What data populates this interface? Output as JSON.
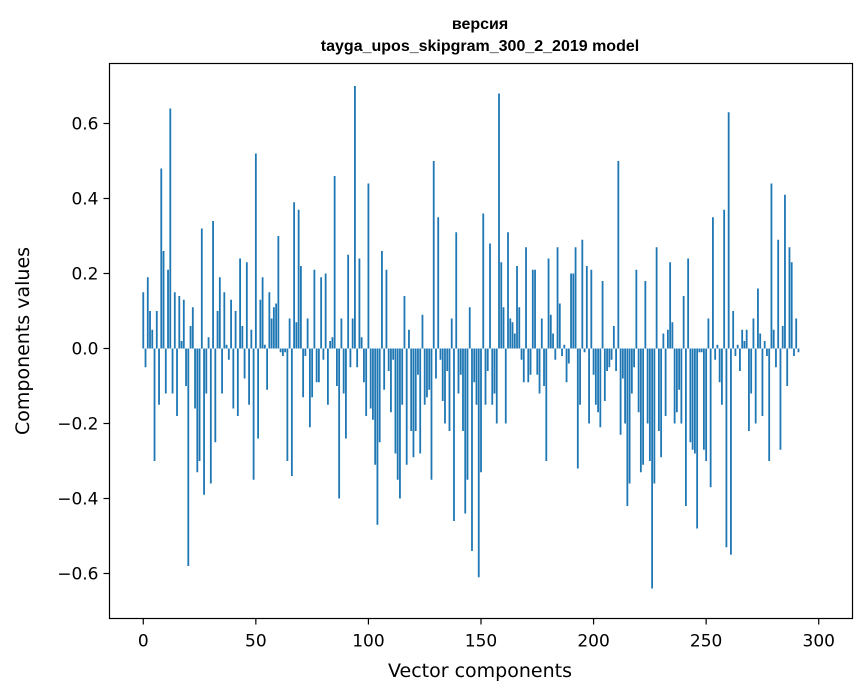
{
  "chart_data": {
    "type": "bar",
    "title_line1": "версия",
    "title_line2": "tayga_upos_skipgram_300_2_2019 model",
    "xlabel": "Vector components",
    "ylabel": "Components values",
    "xlim": [
      -15,
      315
    ],
    "ylim": [
      -0.72,
      0.76
    ],
    "xticks": [
      0,
      50,
      100,
      150,
      200,
      250,
      300
    ],
    "xtick_labels": [
      "0",
      "50",
      "100",
      "150",
      "200",
      "250",
      "300"
    ],
    "yticks": [
      -0.6,
      -0.4,
      -0.2,
      0.0,
      0.2,
      0.4,
      0.6
    ],
    "ytick_labels": [
      "−0.6",
      "−0.4",
      "−0.2",
      "0.0",
      "0.2",
      "0.4",
      "0.6"
    ],
    "bar_color": "#1f77b4",
    "values": [
      0.15,
      -0.05,
      0.19,
      0.1,
      0.05,
      -0.3,
      0.1,
      -0.15,
      0.48,
      0.26,
      -0.12,
      0.21,
      0.64,
      -0.12,
      0.15,
      -0.18,
      0.14,
      0.02,
      0.13,
      -0.1,
      -0.58,
      0.06,
      0.11,
      -0.16,
      -0.33,
      -0.3,
      0.32,
      -0.39,
      -0.12,
      0.03,
      -0.36,
      0.34,
      -0.25,
      0.1,
      0.19,
      -0.12,
      0.15,
      0.01,
      -0.03,
      0.13,
      -0.16,
      0.1,
      -0.18,
      0.24,
      0.06,
      -0.08,
      0.23,
      -0.15,
      0.05,
      -0.35,
      0.52,
      -0.24,
      0.13,
      0.19,
      0.01,
      -0.11,
      0.15,
      0.08,
      0.11,
      0.12,
      0.3,
      -0.01,
      -0.02,
      -0.01,
      -0.3,
      0.08,
      -0.34,
      0.39,
      0.07,
      0.37,
      0.22,
      -0.13,
      -0.02,
      0.08,
      -0.21,
      -0.13,
      0.21,
      -0.09,
      -0.09,
      0.19,
      -0.03,
      0.2,
      -0.15,
      0.02,
      0.03,
      0.46,
      -0.1,
      -0.4,
      0.08,
      -0.12,
      -0.24,
      0.25,
      -0.05,
      0.08,
      0.7,
      -0.05,
      0.24,
      0.03,
      -0.09,
      -0.18,
      0.44,
      -0.16,
      -0.19,
      -0.31,
      -0.47,
      -0.25,
      0.26,
      -0.11,
      0.21,
      -0.06,
      -0.17,
      -0.03,
      -0.28,
      -0.35,
      -0.4,
      -0.15,
      0.14,
      -0.31,
      0.05,
      -0.22,
      -0.29,
      -0.22,
      -0.07,
      -0.28,
      0.09,
      -0.15,
      -0.13,
      -0.11,
      -0.35,
      0.5,
      -0.08,
      0.35,
      -0.03,
      -0.14,
      -0.2,
      -0.06,
      -0.22,
      0.08,
      -0.46,
      0.31,
      -0.12,
      -0.07,
      -0.22,
      -0.44,
      -0.35,
      0.11,
      -0.54,
      -0.09,
      -0.15,
      -0.61,
      -0.33,
      0.36,
      -0.15,
      -0.06,
      0.28,
      -0.15,
      -0.12,
      -0.2,
      0.68,
      0.23,
      0.11,
      -0.2,
      0.31,
      0.08,
      0.07,
      0.04,
      0.22,
      0.11,
      -0.03,
      -0.09,
      0.27,
      -0.09,
      -0.07,
      0.21,
      0.21,
      -0.07,
      -0.12,
      0.08,
      -0.1,
      -0.3,
      0.24,
      0.09,
      0.04,
      -0.03,
      0.27,
      0.12,
      -0.02,
      0.01,
      -0.09,
      -0.04,
      0.2,
      0.2,
      0.27,
      -0.32,
      -0.15,
      0.29,
      -0.01,
      0.22,
      -0.2,
      0.21,
      -0.07,
      -0.15,
      -0.17,
      -0.21,
      0.18,
      -0.14,
      -0.06,
      -0.05,
      -0.03,
      0.06,
      -0.06,
      0.5,
      -0.23,
      -0.08,
      -0.2,
      -0.42,
      -0.36,
      -0.12,
      -0.05,
      0.21,
      -0.17,
      -0.33,
      -0.31,
      0.18,
      -0.2,
      -0.3,
      -0.64,
      -0.36,
      0.27,
      -0.22,
      -0.29,
      0.04,
      -0.18,
      0.05,
      0.23,
      0.07,
      -0.2,
      -0.17,
      -0.11,
      -0.2,
      0.14,
      -0.42,
      0.24,
      -0.25,
      -0.27,
      -0.28,
      -0.48,
      -0.01,
      -0.01,
      -0.27,
      -0.3,
      0.08,
      -0.37,
      0.35,
      -0.03,
      0.01,
      -0.09,
      -0.15,
      0.37,
      -0.53,
      0.63,
      -0.55,
      0.1,
      -0.02,
      0.01,
      -0.06,
      0.05,
      0.02,
      0.05,
      -0.22,
      -0.12,
      0.08,
      -0.2,
      0.16,
      0.04,
      -0.18,
      0.02,
      -0.02,
      -0.3,
      0.44,
      0.05,
      -0.05,
      0.29,
      -0.27,
      0.06,
      0.41,
      -0.1,
      0.27,
      0.23,
      -0.02,
      0.08,
      -0.01
    ]
  }
}
